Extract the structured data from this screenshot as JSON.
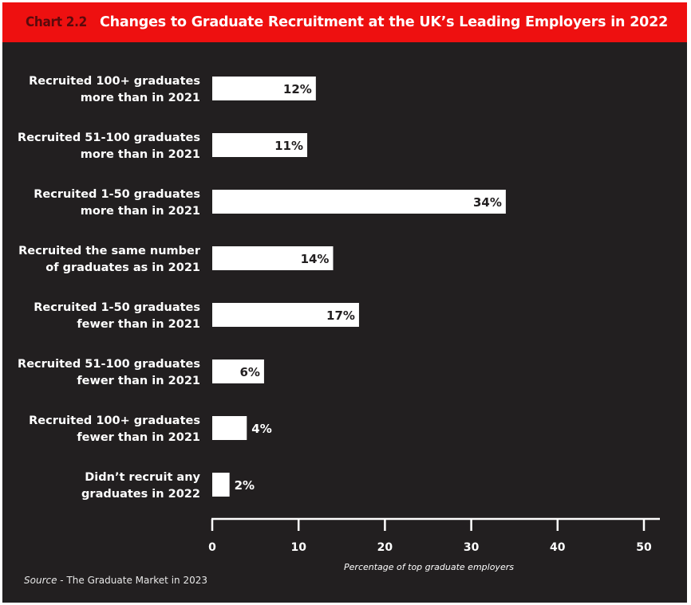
{
  "header": {
    "chart_number": "Chart 2.2",
    "title": "Changes to Graduate Recruitment at the UK’s Leading Employers in 2022"
  },
  "source": {
    "prefix": "Source",
    "text": " - The Graduate Market in 2023"
  },
  "colors": {
    "header_bg": "#ee1010",
    "chart_number": "#5a0a0c",
    "panel_bg": "#221f20",
    "bar_fill": "#ffffff",
    "value_inside": "#221f20",
    "value_outside": "#ffffff"
  },
  "chart_data": {
    "type": "bar",
    "orientation": "horizontal",
    "title": "Changes to Graduate Recruitment at the UK’s Leading Employers in 2022",
    "xlabel": "Percentage of top graduate employers",
    "ylabel": "",
    "xlim": [
      0,
      50
    ],
    "xticks": [
      0,
      10,
      20,
      30,
      40,
      50
    ],
    "grid": false,
    "legend": "none",
    "categories": [
      [
        "Recruited 100+ graduates",
        "more than in 2021"
      ],
      [
        "Recruited 51-100 graduates",
        "more than in 2021"
      ],
      [
        "Recruited 1-50 graduates",
        "more than in 2021"
      ],
      [
        "Recruited the same number",
        "of graduates as in 2021"
      ],
      [
        "Recruited 1-50 graduates",
        "fewer than in 2021"
      ],
      [
        "Recruited 51-100 graduates",
        "fewer than in 2021"
      ],
      [
        "Recruited 100+ graduates",
        "fewer than in 2021"
      ],
      [
        "Didn’t recruit any",
        "graduates in 2022"
      ]
    ],
    "values": [
      12,
      11,
      34,
      14,
      17,
      6,
      4,
      2
    ],
    "value_labels": [
      "12%",
      "11%",
      "34%",
      "14%",
      "17%",
      "6%",
      "4%",
      "2%"
    ]
  }
}
